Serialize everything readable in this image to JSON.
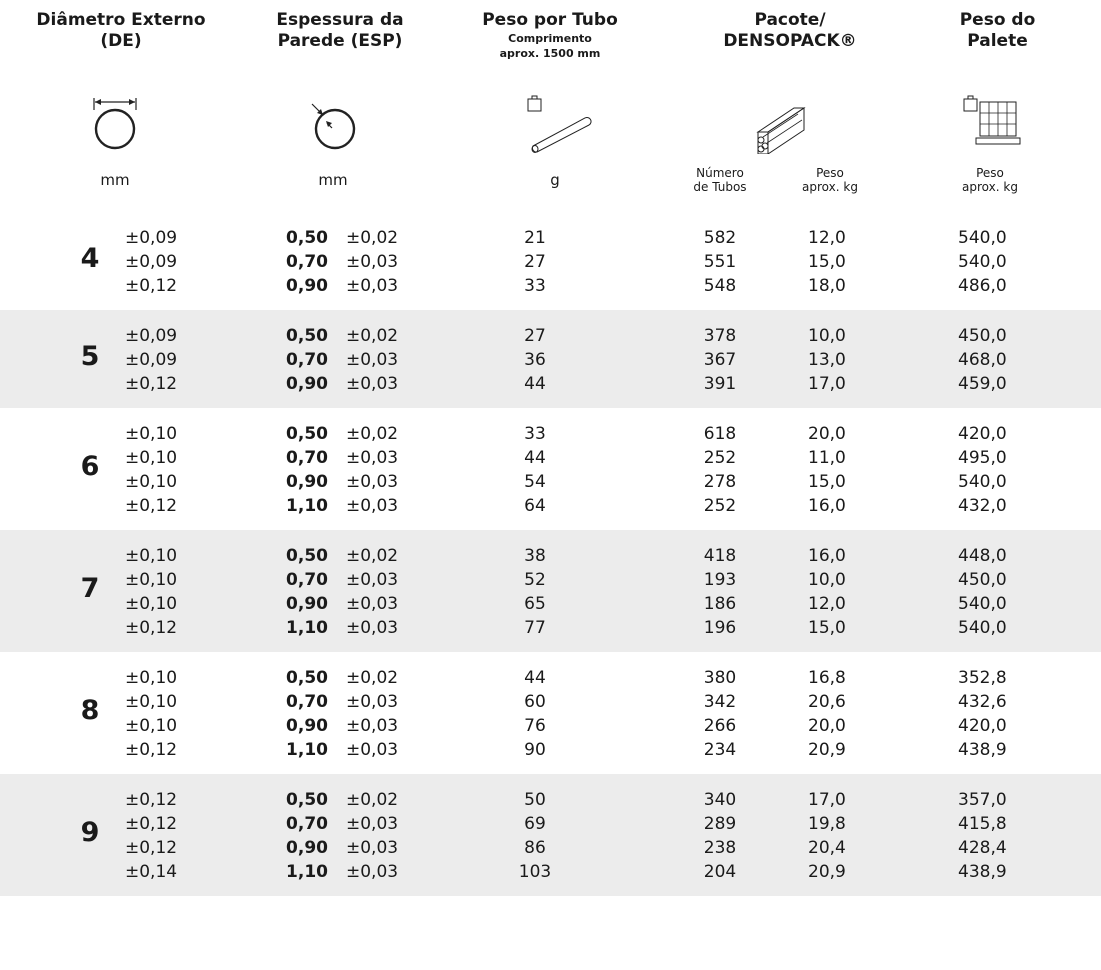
{
  "headers": {
    "de": {
      "line1": "Diâmetro Externo",
      "line2": "(DE)",
      "unit": "mm"
    },
    "esp": {
      "line1": "Espessura da",
      "line2": "Parede (ESP)",
      "unit": "mm"
    },
    "peso": {
      "line1": "Peso por Tubo",
      "sub1": "Comprimento",
      "sub2": "aprox. 1500 mm",
      "unit": "g"
    },
    "pacote": {
      "line1": "Pacote/",
      "line2": "DENSOPACK®",
      "num_l1": "Número",
      "num_l2": "de Tubos",
      "peso_l1": "Peso",
      "peso_l2": "aprox. kg"
    },
    "palete": {
      "line1": "Peso do",
      "line2": "Palete",
      "unit_l1": "Peso",
      "unit_l2": "aprox. kg"
    }
  },
  "groups": [
    {
      "de": "4",
      "rows": [
        {
          "tol_de": "±0,09",
          "esp": "0,50",
          "tol_esp": "±0,02",
          "peso": "21",
          "num": "582",
          "peso_pac": "12,0",
          "palete": "540,0"
        },
        {
          "tol_de": "±0,09",
          "esp": "0,70",
          "tol_esp": "±0,03",
          "peso": "27",
          "num": "551",
          "peso_pac": "15,0",
          "palete": "540,0"
        },
        {
          "tol_de": "±0,12",
          "esp": "0,90",
          "tol_esp": "±0,03",
          "peso": "33",
          "num": "548",
          "peso_pac": "18,0",
          "palete": "486,0"
        }
      ]
    },
    {
      "de": "5",
      "rows": [
        {
          "tol_de": "±0,09",
          "esp": "0,50",
          "tol_esp": "±0,02",
          "peso": "27",
          "num": "378",
          "peso_pac": "10,0",
          "palete": "450,0"
        },
        {
          "tol_de": "±0,09",
          "esp": "0,70",
          "tol_esp": "±0,03",
          "peso": "36",
          "num": "367",
          "peso_pac": "13,0",
          "palete": "468,0"
        },
        {
          "tol_de": "±0,12",
          "esp": "0,90",
          "tol_esp": "±0,03",
          "peso": "44",
          "num": "391",
          "peso_pac": "17,0",
          "palete": "459,0"
        }
      ]
    },
    {
      "de": "6",
      "rows": [
        {
          "tol_de": "±0,10",
          "esp": "0,50",
          "tol_esp": "±0,02",
          "peso": "33",
          "num": "618",
          "peso_pac": "20,0",
          "palete": "420,0"
        },
        {
          "tol_de": "±0,10",
          "esp": "0,70",
          "tol_esp": "±0,03",
          "peso": "44",
          "num": "252",
          "peso_pac": "11,0",
          "palete": "495,0"
        },
        {
          "tol_de": "±0,10",
          "esp": "0,90",
          "tol_esp": "±0,03",
          "peso": "54",
          "num": "278",
          "peso_pac": "15,0",
          "palete": "540,0"
        },
        {
          "tol_de": "±0,12",
          "esp": "1,10",
          "tol_esp": "±0,03",
          "peso": "64",
          "num": "252",
          "peso_pac": "16,0",
          "palete": "432,0"
        }
      ]
    },
    {
      "de": "7",
      "rows": [
        {
          "tol_de": "±0,10",
          "esp": "0,50",
          "tol_esp": "±0,02",
          "peso": "38",
          "num": "418",
          "peso_pac": "16,0",
          "palete": "448,0"
        },
        {
          "tol_de": "±0,10",
          "esp": "0,70",
          "tol_esp": "±0,03",
          "peso": "52",
          "num": "193",
          "peso_pac": "10,0",
          "palete": "450,0"
        },
        {
          "tol_de": "±0,10",
          "esp": "0,90",
          "tol_esp": "±0,03",
          "peso": "65",
          "num": "186",
          "peso_pac": "12,0",
          "palete": "540,0"
        },
        {
          "tol_de": "±0,12",
          "esp": "1,10",
          "tol_esp": "±0,03",
          "peso": "77",
          "num": "196",
          "peso_pac": "15,0",
          "palete": "540,0"
        }
      ]
    },
    {
      "de": "8",
      "rows": [
        {
          "tol_de": "±0,10",
          "esp": "0,50",
          "tol_esp": "±0,02",
          "peso": "44",
          "num": "380",
          "peso_pac": "16,8",
          "palete": "352,8"
        },
        {
          "tol_de": "±0,10",
          "esp": "0,70",
          "tol_esp": "±0,03",
          "peso": "60",
          "num": "342",
          "peso_pac": "20,6",
          "palete": "432,6"
        },
        {
          "tol_de": "±0,10",
          "esp": "0,90",
          "tol_esp": "±0,03",
          "peso": "76",
          "num": "266",
          "peso_pac": "20,0",
          "palete": "420,0"
        },
        {
          "tol_de": "±0,12",
          "esp": "1,10",
          "tol_esp": "±0,03",
          "peso": "90",
          "num": "234",
          "peso_pac": "20,9",
          "palete": "438,9"
        }
      ]
    },
    {
      "de": "9",
      "rows": [
        {
          "tol_de": "±0,12",
          "esp": "0,50",
          "tol_esp": "±0,02",
          "peso": "50",
          "num": "340",
          "peso_pac": "17,0",
          "palete": "357,0"
        },
        {
          "tol_de": "±0,12",
          "esp": "0,70",
          "tol_esp": "±0,03",
          "peso": "69",
          "num": "289",
          "peso_pac": "19,8",
          "palete": "415,8"
        },
        {
          "tol_de": "±0,12",
          "esp": "0,90",
          "tol_esp": "±0,03",
          "peso": "86",
          "num": "238",
          "peso_pac": "20,4",
          "palete": "428,4"
        },
        {
          "tol_de": "±0,14",
          "esp": "1,10",
          "tol_esp": "±0,03",
          "peso": "103",
          "num": "204",
          "peso_pac": "20,9",
          "palete": "438,9"
        }
      ]
    }
  ]
}
